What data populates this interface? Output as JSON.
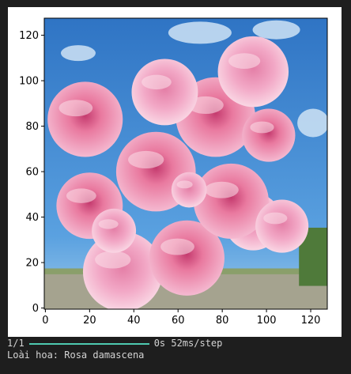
{
  "console": {
    "progress_counter": "1/1",
    "progress_fraction": 1.0,
    "timing": "0s 52ms/step",
    "result_line": "Loài hoa: Rosa damascena"
  },
  "image_description_icon": "rose-bouquet-image",
  "chart_data": {
    "type": "image",
    "x_ticks": [
      0,
      20,
      40,
      60,
      80,
      100,
      120
    ],
    "y_ticks": [
      0,
      20,
      40,
      60,
      80,
      100,
      120
    ],
    "xlim": [
      -0.5,
      127.5
    ],
    "ylim": [
      127.5,
      -0.5
    ]
  },
  "colors": {
    "sky": "#3d86cf",
    "rose_light": "#f2a8c6",
    "rose_mid": "#e9799f",
    "rose_dark": "#c43a6e",
    "progress": "#4ec9b0"
  }
}
